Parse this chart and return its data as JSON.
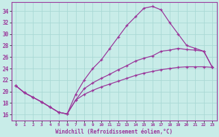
{
  "xlabel": "Windchill (Refroidissement éolien,°C)",
  "xlim": [
    -0.5,
    23.5
  ],
  "ylim": [
    15.0,
    35.5
  ],
  "xticks": [
    0,
    1,
    2,
    3,
    4,
    5,
    6,
    7,
    8,
    9,
    10,
    11,
    12,
    13,
    14,
    15,
    16,
    17,
    18,
    19,
    20,
    21,
    22,
    23
  ],
  "yticks": [
    16,
    18,
    20,
    22,
    24,
    26,
    28,
    30,
    32,
    34
  ],
  "bg_color": "#c8ece8",
  "grid_color": "#a8d8d4",
  "line_color": "#993399",
  "curve1_x": [
    0,
    1,
    2,
    3,
    4,
    5,
    6,
    7,
    8,
    9,
    10,
    11,
    12,
    13,
    14,
    15,
    16,
    17,
    18,
    19,
    20,
    21,
    22,
    23
  ],
  "curve1_y": [
    21.0,
    19.8,
    19.0,
    18.2,
    17.3,
    16.4,
    16.1,
    19.5,
    22.0,
    24.0,
    25.5,
    27.5,
    29.5,
    31.5,
    33.0,
    34.5,
    34.8,
    34.2,
    32.0,
    30.0,
    28.0,
    27.5,
    27.0,
    24.2
  ],
  "curve2_x": [
    0,
    1,
    2,
    3,
    4,
    5,
    6,
    7,
    8,
    9,
    10,
    11,
    12,
    13,
    14,
    15,
    16,
    17,
    18,
    19,
    20,
    21,
    22,
    23
  ],
  "curve2_y": [
    21.0,
    19.8,
    19.0,
    18.2,
    17.3,
    16.4,
    16.1,
    18.5,
    20.5,
    21.5,
    22.3,
    23.0,
    23.8,
    24.5,
    25.3,
    25.8,
    26.2,
    27.0,
    27.2,
    27.5,
    27.3,
    27.2,
    27.0,
    24.2
  ],
  "curve3_x": [
    0,
    1,
    2,
    3,
    4,
    5,
    6,
    7,
    8,
    9,
    10,
    11,
    12,
    13,
    14,
    15,
    16,
    17,
    18,
    19,
    20,
    21,
    22,
    23
  ],
  "curve3_y": [
    21.0,
    19.8,
    19.0,
    18.2,
    17.3,
    16.4,
    16.1,
    18.5,
    19.5,
    20.2,
    20.8,
    21.3,
    21.8,
    22.3,
    22.8,
    23.2,
    23.5,
    23.8,
    24.0,
    24.2,
    24.3,
    24.3,
    24.3,
    24.2
  ]
}
